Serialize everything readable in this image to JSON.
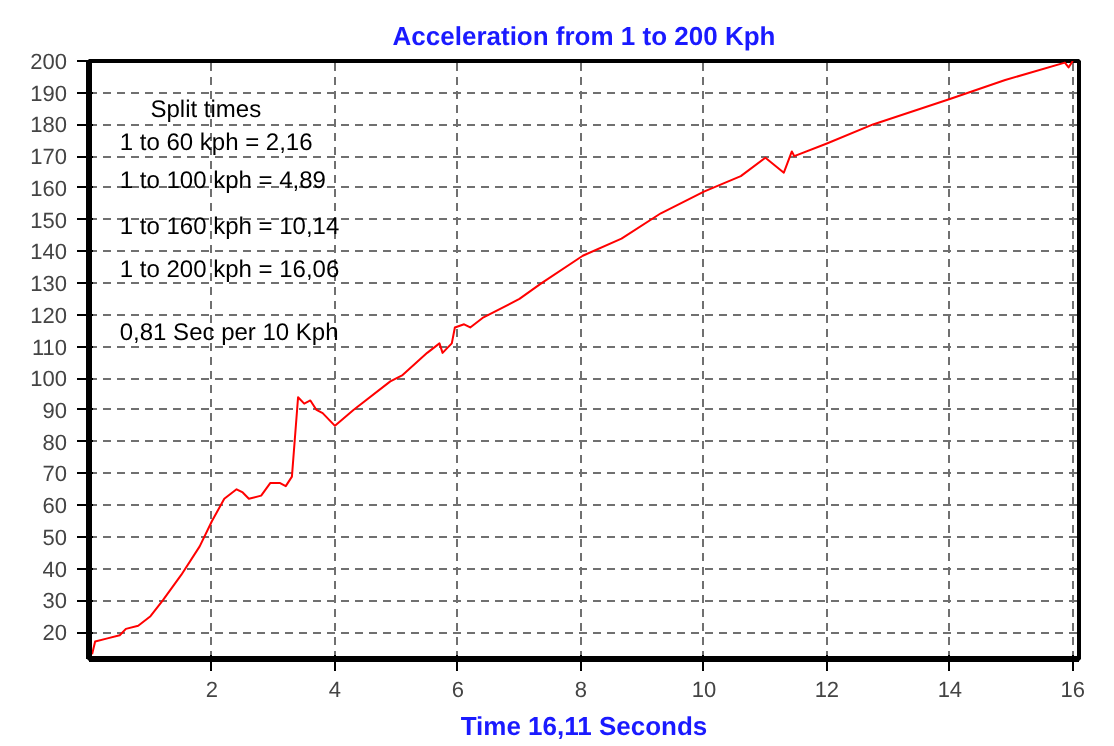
{
  "chart_data": {
    "type": "line",
    "title": "Acceleration from 1 to 200 Kph",
    "xlabel": "Time 16,11 Seconds",
    "annotations": [
      "Split times",
      "1 to 60 kph = 2,16",
      "1 to 100 kph = 4,89",
      "1 to 160 kph = 10,14",
      "1 to 200 kph = 16,06",
      "0,81 Sec per 10 Kph"
    ],
    "xlim": [
      0,
      16.1
    ],
    "ylim": [
      11.5,
      200
    ],
    "xticks": [
      2,
      4,
      6,
      8,
      10,
      12,
      14,
      16
    ],
    "yticks": [
      20,
      30,
      40,
      50,
      60,
      70,
      80,
      90,
      100,
      110,
      120,
      130,
      140,
      150,
      160,
      170,
      180,
      190,
      200
    ],
    "grid": true,
    "marker": "none",
    "line_style": "solid",
    "series": [
      {
        "color": "#ff0000",
        "x": [
          0.05,
          0.1,
          0.3,
          0.5,
          0.6,
          0.8,
          1.0,
          1.2,
          1.5,
          1.8,
          2.0,
          2.2,
          2.4,
          2.5,
          2.6,
          2.8,
          2.95,
          3.1,
          3.2,
          3.3,
          3.4,
          3.5,
          3.6,
          3.7,
          3.8,
          4.0,
          4.3,
          4.9,
          5.1,
          5.5,
          5.7,
          5.75,
          5.9,
          5.95,
          6.1,
          6.2,
          6.4,
          7.0,
          7.36,
          8.03,
          8.66,
          9.3,
          10.0,
          10.6,
          11.0,
          11.3,
          11.43,
          11.47,
          12.0,
          12.75,
          14.0,
          14.9,
          15.87,
          15.93,
          16.0
        ],
        "values": [
          13,
          17,
          18,
          19,
          21,
          22,
          25,
          30,
          38,
          47,
          55,
          62,
          65,
          64,
          62,
          63,
          67,
          67,
          66,
          69,
          94,
          92,
          93,
          90,
          89,
          85,
          90,
          99,
          101,
          108,
          111,
          108,
          111,
          116,
          117,
          116,
          119,
          125,
          130,
          138.6,
          144,
          152,
          158.8,
          163.7,
          169.5,
          164.8,
          171.5,
          170,
          174,
          180,
          188,
          194,
          199.5,
          198,
          200
        ]
      }
    ]
  }
}
